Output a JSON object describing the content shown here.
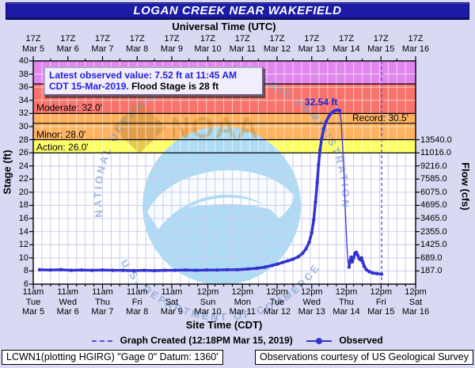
{
  "title_bar": {
    "title": "LOGAN CREEK NEAR WAKEFIELD"
  },
  "top_axis": {
    "title": "Universal Time (UTC)"
  },
  "bottom_axis": {
    "title": "Site Time (CDT)"
  },
  "left_axis": {
    "title": "Stage (ft)"
  },
  "right_axis": {
    "title": "Flow (cfs)"
  },
  "info_box": {
    "line1": "Latest observed value: 7.52 ft at 11:45 AM",
    "line2_highlight": "CDT 15-Mar-2019.",
    "line2_rest": "  Flood Stage is 28 ft"
  },
  "annotations": {
    "moderate": "Moderate: 32.0'",
    "minor": "Minor: 28.0'",
    "action": "Action: 26.0'",
    "record": "Record: 30.5'",
    "peak": "32.54 ft"
  },
  "legend": {
    "created": "Graph Created (12:18PM Mar 15, 2019)",
    "observed": "Observed"
  },
  "footer": {
    "left": "LCWN1(plotting HGIRG) \"Gage 0\" Datum: 1360'",
    "right": "Observations courtesy of US Geological Survey"
  },
  "watermark": {
    "arc_top": "NATIONAL OCEANIC AND ATMOSPHERIC ADMINISTRATION",
    "arc_bottom": "U.S. DEPARTMENT OF COMMERCE",
    "noaa": "NOAA"
  },
  "colors": {
    "page_bg": "#d9d9f3",
    "title_bg": "#1b1ba6",
    "plot_bg": "#ffffff",
    "band_major": "#e287ef",
    "band_moderate": "#f8736b",
    "band_minor": "#ffb25f",
    "band_action": "#ffff66",
    "grid_on_white": "#ccccee",
    "grid_on_bands": "rgba(255,255,255,0.6)",
    "observed": "#3232d2",
    "created_line": "#5050dd",
    "watermark_blue": "#aedcf4",
    "watermark_text": "rgba(125,160,205,0.75)",
    "watermark_tan": "rgba(190,130,45,0.42)"
  },
  "chart_data": {
    "type": "line",
    "title": "LOGAN CREEK NEAR WAKEFIELD",
    "x_label_top": "Universal Time (UTC)",
    "x_label_bottom": "Site Time (CDT)",
    "y_left": {
      "label": "Stage (ft)",
      "min": 6,
      "max": 40,
      "tick_step": 2
    },
    "y_right": {
      "label": "Flow (cfs)"
    },
    "y_right_ticks": [
      {
        "stage": 28,
        "flow": "13540.0"
      },
      {
        "stage": 26,
        "flow": "11016.0"
      },
      {
        "stage": 24,
        "flow": "9216.0"
      },
      {
        "stage": 22,
        "flow": "7585.0"
      },
      {
        "stage": 20,
        "flow": "6075.0"
      },
      {
        "stage": 18,
        "flow": "4695.0"
      },
      {
        "stage": 16,
        "flow": "3465.0"
      },
      {
        "stage": 14,
        "flow": "2355.0"
      },
      {
        "stage": 12,
        "flow": "1425.0"
      },
      {
        "stage": 10,
        "flow": "689.0"
      },
      {
        "stage": 8,
        "flow": "187.0"
      }
    ],
    "flood_stages": {
      "action": 26.0,
      "minor": 28.0,
      "moderate": 32.0,
      "major_band_start": 36.5,
      "record": 30.5
    },
    "latest_observed": {
      "stage_ft": 7.52,
      "time": "11:45 AM CDT 15-Mar-2019"
    },
    "peak_observed": {
      "stage_ft": 32.54
    },
    "graph_created": {
      "label": "12:18PM Mar 15, 2019",
      "d": 10.06
    },
    "day_span": 11.0417,
    "day_ticks": [
      {
        "d": 0,
        "utc": "17Z",
        "date": "Mar 5",
        "time": "11am",
        "day": "Tue"
      },
      {
        "d": 1,
        "utc": "17Z",
        "date": "Mar 6",
        "time": "11am",
        "day": "Wed"
      },
      {
        "d": 2,
        "utc": "17Z",
        "date": "Mar 7",
        "time": "11am",
        "day": "Thu"
      },
      {
        "d": 3,
        "utc": "17Z",
        "date": "Mar 8",
        "time": "11am",
        "day": "Fri"
      },
      {
        "d": 4,
        "utc": "17Z",
        "date": "Mar 9",
        "time": "11am",
        "day": "Sat"
      },
      {
        "d": 5.0417,
        "utc": "17Z",
        "date": "Mar 10",
        "time": "12pm",
        "day": "Sun"
      },
      {
        "d": 6.0417,
        "utc": "17Z",
        "date": "Mar 11",
        "time": "12pm",
        "day": "Mon"
      },
      {
        "d": 7.0417,
        "utc": "17Z",
        "date": "Mar 12",
        "time": "12pm",
        "day": "Tue"
      },
      {
        "d": 8.0417,
        "utc": "17Z",
        "date": "Mar 13",
        "time": "12pm",
        "day": "Wed"
      },
      {
        "d": 9.0417,
        "utc": "17Z",
        "date": "Mar 14",
        "time": "12pm",
        "day": "Thu"
      },
      {
        "d": 10.0417,
        "utc": "17Z",
        "date": "Mar 15",
        "time": "12pm",
        "day": "Fri"
      },
      {
        "d": 11.0417,
        "utc": "17Z",
        "date": "Mar 16",
        "time": "12pm",
        "day": "Sat"
      }
    ],
    "observed": {
      "main": [
        [
          0.18,
          8.2
        ],
        [
          0.5,
          8.15
        ],
        [
          0.8,
          8.2
        ],
        [
          1.1,
          8.1
        ],
        [
          1.4,
          8.15
        ],
        [
          1.7,
          8.1
        ],
        [
          2.0,
          8.15
        ],
        [
          2.3,
          8.1
        ],
        [
          2.6,
          8.1
        ],
        [
          2.9,
          8.05
        ],
        [
          3.2,
          8.1
        ],
        [
          3.5,
          8.05
        ],
        [
          3.8,
          8.1
        ],
        [
          4.1,
          8.1
        ],
        [
          4.4,
          8.15
        ],
        [
          4.7,
          8.1
        ],
        [
          5.0,
          8.15
        ],
        [
          5.3,
          8.15
        ],
        [
          5.6,
          8.2
        ],
        [
          5.9,
          8.2
        ],
        [
          6.2,
          8.3
        ],
        [
          6.45,
          8.4
        ],
        [
          6.7,
          8.6
        ],
        [
          6.9,
          8.85
        ],
        [
          7.05,
          9.05
        ],
        [
          7.2,
          9.3
        ],
        [
          7.35,
          9.55
        ],
        [
          7.5,
          9.8
        ],
        [
          7.65,
          10.15
        ],
        [
          7.78,
          10.7
        ],
        [
          7.88,
          11.4
        ],
        [
          7.97,
          12.4
        ],
        [
          8.04,
          13.8
        ],
        [
          8.1,
          15.8
        ],
        [
          8.15,
          18.5
        ],
        [
          8.2,
          21.5
        ],
        [
          8.24,
          24.2
        ],
        [
          8.28,
          26.4
        ],
        [
          8.33,
          28.2
        ],
        [
          8.39,
          29.7
        ],
        [
          8.46,
          30.8
        ],
        [
          8.54,
          31.6
        ],
        [
          8.62,
          32.1
        ],
        [
          8.7,
          32.4
        ],
        [
          8.78,
          32.54
        ],
        [
          8.85,
          32.45
        ]
      ],
      "falling_thin": [
        [
          8.85,
          32.45
        ],
        [
          8.89,
          30.8
        ],
        [
          8.93,
          27.5
        ],
        [
          8.97,
          23.0
        ],
        [
          9.01,
          17.5
        ],
        [
          9.05,
          12.5
        ],
        [
          9.09,
          9.3
        ],
        [
          9.12,
          8.6
        ]
      ],
      "recession": [
        [
          9.12,
          8.6
        ],
        [
          9.15,
          9.6
        ],
        [
          9.18,
          10.1
        ],
        [
          9.21,
          9.4
        ],
        [
          9.25,
          10.0
        ],
        [
          9.29,
          10.7
        ],
        [
          9.33,
          10.85
        ],
        [
          9.37,
          10.4
        ],
        [
          9.41,
          9.9
        ],
        [
          9.45,
          9.7
        ],
        [
          9.48,
          10.0
        ],
        [
          9.52,
          9.3
        ],
        [
          9.56,
          8.7
        ],
        [
          9.62,
          8.2
        ],
        [
          9.7,
          7.9
        ],
        [
          9.8,
          7.7
        ],
        [
          9.92,
          7.6
        ],
        [
          10.06,
          7.52
        ]
      ]
    }
  }
}
